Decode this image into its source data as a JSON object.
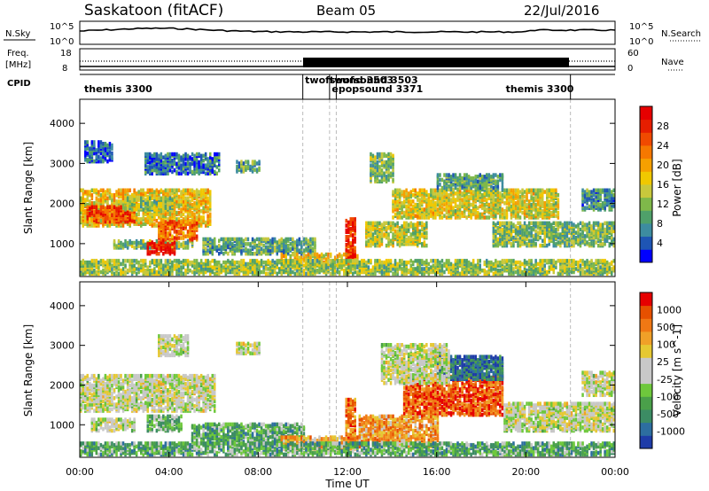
{
  "header": {
    "title": "Saskatoon (fitACF)",
    "beam": "Beam 05",
    "date": "22/Jul/2016"
  },
  "top_panel": {
    "left_label": "N.Sky",
    "right_label": "N.Search",
    "left_ticks": [
      "10^5",
      "10^0"
    ],
    "right_ticks": [
      "10^5",
      "10^0"
    ]
  },
  "freq_panel": {
    "left_label_1": "Freq.",
    "left_label_2": "[MHz]",
    "right_label": "Nave",
    "left_ticks": [
      "18",
      "8"
    ],
    "right_ticks": [
      "60",
      "0"
    ]
  },
  "cpid_panel": {
    "label": "CPID",
    "entries": [
      {
        "text": "themis 3300",
        "t": 0.2
      },
      {
        "text": "twofsound 3503",
        "t": 10.1
      },
      {
        "text": "twofsound 3503",
        "t": 11.2
      },
      {
        "text": "epopsound 3371",
        "t": 11.3
      },
      {
        "text": "themis 3300",
        "t": 19.1
      }
    ],
    "boundaries_ut": [
      10.0,
      11.2,
      11.5,
      22.0
    ]
  },
  "x_axis": {
    "label": "Time UT",
    "ticks": [
      "00:00",
      "04:00",
      "08:00",
      "12:00",
      "16:00",
      "20:00",
      "00:00"
    ],
    "range_hours": [
      0,
      24
    ]
  },
  "power_panel": {
    "ylabel": "Slant Range [km]",
    "yticks": [
      "1000",
      "2000",
      "3000",
      "4000"
    ],
    "colorbar_label": "Power [dB]",
    "colorbar_ticks": [
      "4",
      "8",
      "12",
      "16",
      "20",
      "24",
      "28"
    ],
    "colors": [
      "#0000ff",
      "#1e55b4",
      "#3d8ca0",
      "#4fa06a",
      "#7fb84a",
      "#c8c83c",
      "#f0c800",
      "#f5a000",
      "#f57800",
      "#f04a00",
      "#e61e00",
      "#e60000"
    ]
  },
  "velocity_panel": {
    "ylabel": "Slant Range [km]",
    "yticks": [
      "1000",
      "2000",
      "3000",
      "4000"
    ],
    "colorbar_label": "Velocity [m s^-1]",
    "colorbar_ticks": [
      "1000",
      "500",
      "100",
      "25",
      "-25",
      "-100",
      "-500",
      "-1000"
    ],
    "colors": [
      "#1e3ca8",
      "#2d6ea0",
      "#3c8c64",
      "#4aa04a",
      "#6ec83c",
      "#c8c8c8",
      "#c8c8c8",
      "#e6c832",
      "#f0a028",
      "#f07814",
      "#e65000",
      "#e60000"
    ]
  },
  "chart_data": {
    "type": "heatmap",
    "title": "Saskatoon (fitACF)",
    "xlabel": "Time UT",
    "ylabel": "Slant Range [km]",
    "xlim": [
      0,
      24
    ],
    "ylim": [
      180,
      4600
    ],
    "power_regions": [
      {
        "t0": 0.0,
        "t1": 5.8,
        "r0": 1400,
        "r1": 2300,
        "level": 0.55
      },
      {
        "t0": 0.3,
        "t1": 2.5,
        "r0": 1500,
        "r1": 1900,
        "level": 0.8
      },
      {
        "t0": 2.0,
        "t1": 4.2,
        "r0": 1800,
        "r1": 2100,
        "level": 0.4
      },
      {
        "t0": 1.5,
        "t1": 5.0,
        "r0": 850,
        "r1": 1050,
        "level": 0.35
      },
      {
        "t0": 3.0,
        "t1": 4.3,
        "r0": 700,
        "r1": 1000,
        "level": 0.95
      },
      {
        "t0": 3.5,
        "t1": 5.2,
        "r0": 1050,
        "r1": 1500,
        "level": 0.75
      },
      {
        "t0": 0.2,
        "t1": 1.5,
        "r0": 3000,
        "r1": 3500,
        "level": 0.15
      },
      {
        "t0": 2.9,
        "t1": 6.2,
        "r0": 2700,
        "r1": 3200,
        "level": 0.2
      },
      {
        "t0": 7.0,
        "t1": 8.0,
        "r0": 2750,
        "r1": 3000,
        "level": 0.3
      },
      {
        "t0": 5.5,
        "t1": 10.5,
        "r0": 700,
        "r1": 1100,
        "level": 0.3
      },
      {
        "t0": 9.0,
        "t1": 12.5,
        "r0": 400,
        "r1": 700,
        "level": 0.55
      },
      {
        "t0": 11.9,
        "t1": 12.3,
        "r0": 600,
        "r1": 1600,
        "level": 0.85
      },
      {
        "t0": 12.8,
        "t1": 15.5,
        "r0": 900,
        "r1": 1500,
        "level": 0.45
      },
      {
        "t0": 13.0,
        "t1": 14.0,
        "r0": 2500,
        "r1": 3200,
        "level": 0.35
      },
      {
        "t0": 14.0,
        "t1": 21.5,
        "r0": 1600,
        "r1": 2300,
        "level": 0.5
      },
      {
        "t0": 16.0,
        "t1": 19.0,
        "r0": 2300,
        "r1": 2700,
        "level": 0.3
      },
      {
        "t0": 18.5,
        "t1": 24.0,
        "r0": 900,
        "r1": 1500,
        "level": 0.35
      },
      {
        "t0": 22.5,
        "t1": 24.0,
        "r0": 1800,
        "r1": 2300,
        "level": 0.25
      },
      {
        "t0": 0.0,
        "t1": 24.0,
        "r0": 200,
        "r1": 550,
        "level": 0.4
      }
    ],
    "velocity_regions": [
      {
        "t0": 0.0,
        "t1": 6.0,
        "r0": 1300,
        "r1": 2200,
        "level": 0.5
      },
      {
        "t0": 0.5,
        "t1": 2.5,
        "r0": 800,
        "r1": 1100,
        "level": 0.5
      },
      {
        "t0": 3.0,
        "t1": 4.5,
        "r0": 800,
        "r1": 1200,
        "level": 0.35
      },
      {
        "t0": 3.5,
        "t1": 4.8,
        "r0": 2700,
        "r1": 3200,
        "level": 0.5
      },
      {
        "t0": 7.0,
        "t1": 8.0,
        "r0": 2750,
        "r1": 3000,
        "level": 0.5
      },
      {
        "t0": 5.0,
        "t1": 10.0,
        "r0": 400,
        "r1": 1000,
        "level": 0.3
      },
      {
        "t0": 9.0,
        "t1": 12.5,
        "r0": 350,
        "r1": 650,
        "level": 0.7
      },
      {
        "t0": 11.9,
        "t1": 12.3,
        "r0": 500,
        "r1": 1600,
        "level": 0.8
      },
      {
        "t0": 12.5,
        "t1": 16.0,
        "r0": 400,
        "r1": 1200,
        "level": 0.72
      },
      {
        "t0": 14.5,
        "t1": 19.0,
        "r0": 1200,
        "r1": 2200,
        "level": 0.85
      },
      {
        "t0": 16.0,
        "t1": 19.0,
        "r0": 2100,
        "r1": 2700,
        "level": 0.12
      },
      {
        "t0": 13.5,
        "t1": 16.5,
        "r0": 2000,
        "r1": 3000,
        "level": 0.5
      },
      {
        "t0": 19.0,
        "t1": 24.0,
        "r0": 800,
        "r1": 1500,
        "level": 0.5
      },
      {
        "t0": 22.5,
        "t1": 24.0,
        "r0": 1700,
        "r1": 2300,
        "level": 0.5
      },
      {
        "t0": 0.0,
        "t1": 24.0,
        "r0": 200,
        "r1": 500,
        "level": 0.3
      }
    ]
  }
}
